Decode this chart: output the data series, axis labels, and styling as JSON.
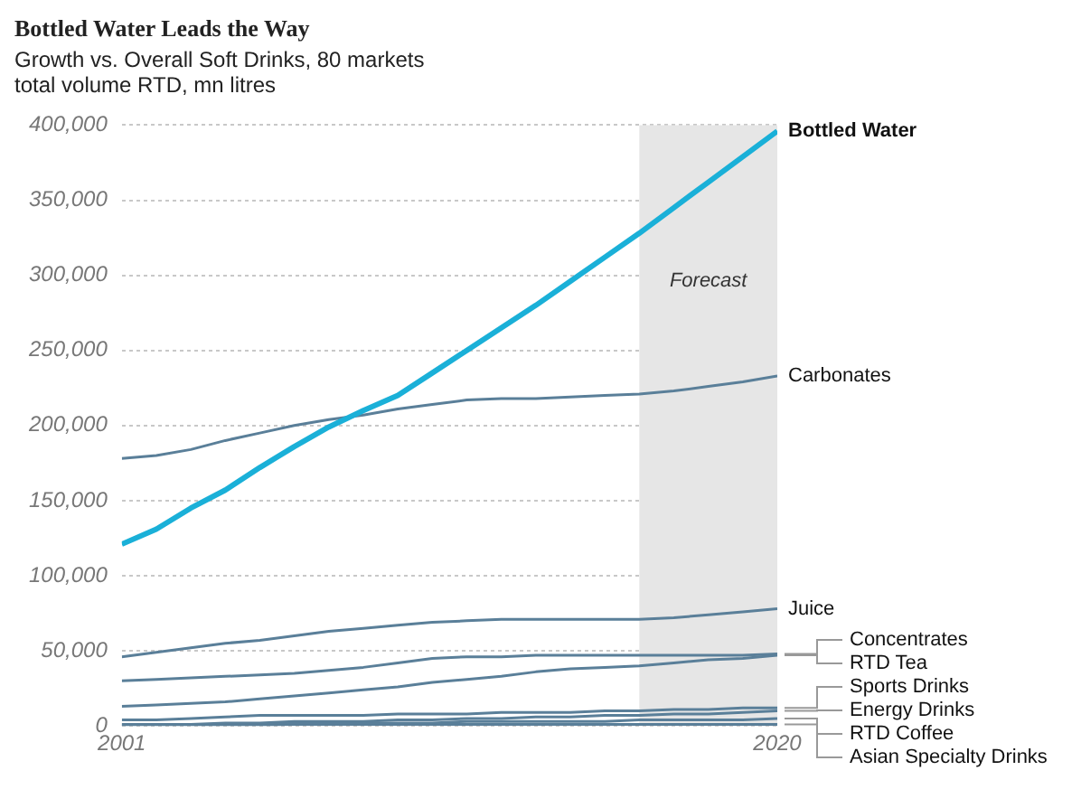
{
  "chart_data": {
    "type": "line",
    "title": "Bottled Water Leads the Way",
    "subtitle": "Growth vs. Overall Soft Drinks, 80 markets",
    "ylabel": "total volume RTD, mn litres",
    "x": [
      2001,
      2002,
      2003,
      2004,
      2005,
      2006,
      2007,
      2008,
      2009,
      2010,
      2011,
      2012,
      2013,
      2014,
      2015,
      2016,
      2017,
      2018,
      2019,
      2020
    ],
    "series": [
      {
        "name": "Bottled Water",
        "color": "#1ab0d8",
        "values": [
          121000,
          131000,
          145000,
          157000,
          172000,
          186000,
          199000,
          210000,
          220000,
          235000,
          250000,
          265000,
          280000,
          296000,
          312000,
          328000,
          345000,
          362000,
          379000,
          396000
        ]
      },
      {
        "name": "Carbonates",
        "color": "#5a7f99",
        "values": [
          178000,
          180000,
          184000,
          190000,
          195000,
          200000,
          204000,
          207000,
          211000,
          214000,
          217000,
          218000,
          218000,
          219000,
          220000,
          221000,
          223000,
          226000,
          229000,
          233000
        ]
      },
      {
        "name": "Juice",
        "color": "#5a7f99",
        "values": [
          46000,
          49000,
          52000,
          55000,
          57000,
          60000,
          63000,
          65000,
          67000,
          69000,
          70000,
          71000,
          71000,
          71000,
          71000,
          71000,
          72000,
          74000,
          76000,
          78000
        ]
      },
      {
        "name": "Concentrates",
        "color": "#5a7f99",
        "values": [
          30000,
          31000,
          32000,
          33000,
          34000,
          35000,
          37000,
          39000,
          42000,
          45000,
          46000,
          46000,
          47000,
          47000,
          47000,
          47000,
          47000,
          47000,
          47000,
          48000
        ]
      },
      {
        "name": "RTD Tea",
        "color": "#5a7f99",
        "values": [
          13000,
          14000,
          15000,
          16000,
          18000,
          20000,
          22000,
          24000,
          26000,
          29000,
          31000,
          33000,
          36000,
          38000,
          39000,
          40000,
          42000,
          44000,
          45000,
          47000
        ]
      },
      {
        "name": "Sports Drinks",
        "color": "#5a7f99",
        "values": [
          4000,
          4000,
          5000,
          6000,
          7000,
          7000,
          7000,
          7000,
          8000,
          8000,
          8000,
          9000,
          9000,
          9000,
          10000,
          10000,
          11000,
          11000,
          12000,
          12000
        ]
      },
      {
        "name": "Energy Drinks",
        "color": "#5a7f99",
        "values": [
          1000,
          1000,
          1000,
          2000,
          2000,
          3000,
          3000,
          3000,
          4000,
          4000,
          5000,
          5000,
          6000,
          6000,
          7000,
          7000,
          8000,
          8000,
          9000,
          10000
        ]
      },
      {
        "name": "RTD Coffee",
        "color": "#5a7f99",
        "values": [
          1000,
          1000,
          1000,
          1000,
          1000,
          2000,
          2000,
          2000,
          2000,
          2000,
          3000,
          3000,
          3000,
          3000,
          3000,
          4000,
          4000,
          4000,
          4000,
          5000
        ]
      },
      {
        "name": "Asian Specialty Drinks",
        "color": "#5a7f99",
        "values": [
          0,
          0,
          0,
          0,
          0,
          1000,
          1000,
          1000,
          1000,
          1000,
          1000,
          1000,
          1000,
          1000,
          1000,
          1000,
          1000,
          1000,
          1000,
          1000
        ]
      }
    ],
    "xlim": [
      2001,
      2020
    ],
    "xticks": [
      2001,
      2020
    ],
    "ylim": [
      0,
      400000
    ],
    "yticks": [
      0,
      {
        "value": 50000,
        "label": "50,000"
      },
      {
        "value": 100000,
        "label": "100,000"
      },
      {
        "value": 150000,
        "label": "150,000"
      },
      {
        "value": 200000,
        "label": "200,000"
      },
      {
        "value": 250000,
        "label": "250,000"
      },
      {
        "value": 300000,
        "label": "300,000"
      },
      {
        "value": 350000,
        "label": "350,000"
      },
      {
        "value": 400000,
        "label": "400,000"
      }
    ],
    "grid": "y",
    "legend": false,
    "marker": "none",
    "line_style": "solid",
    "bands": [
      {
        "axis": "x",
        "from": 2016,
        "to": 2020,
        "label": "Forecast",
        "color": "#e6e6e6"
      }
    ]
  }
}
